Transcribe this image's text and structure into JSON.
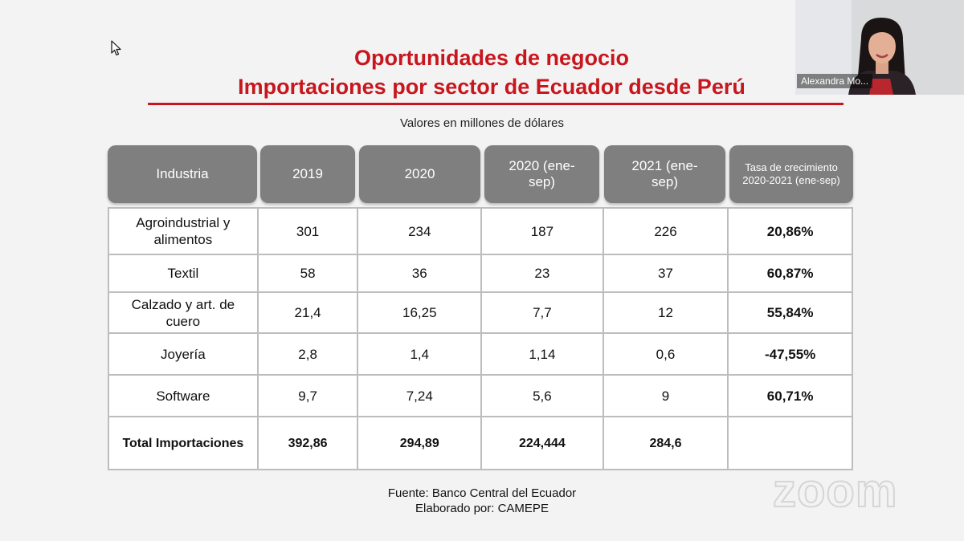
{
  "slide": {
    "title_line1": "Oportunidades de negocio",
    "title_line2": "Importaciones por sector de Ecuador desde Perú",
    "subtitle": "Valores en millones de dólares",
    "accent_color": "#c8161e",
    "header_color": "#7f7f7f"
  },
  "table": {
    "headers": [
      "Industria",
      "2019",
      "2020",
      "2020 (ene-sep)",
      "2021 (ene-sep)",
      "Tasa de crecimiento 2020-2021 (ene-sep)"
    ],
    "rows": [
      [
        "Agroindustrial y alimentos",
        "301",
        "234",
        "187",
        "226",
        "20,86%"
      ],
      [
        "Textil",
        "58",
        "36",
        "23",
        "37",
        "60,87%"
      ],
      [
        "Calzado y art. de cuero",
        "21,4",
        "16,25",
        "7,7",
        "12",
        "55,84%"
      ],
      [
        "Joyería",
        "2,8",
        "1,4",
        "1,14",
        "0,6",
        "-47,55%"
      ],
      [
        "Software",
        "9,7",
        "7,24",
        "5,6",
        "9",
        "60,71%"
      ]
    ],
    "total": [
      "Total Importaciones",
      "392,86",
      "294,89",
      "224,444",
      "284,6",
      ""
    ]
  },
  "footer": {
    "source": "Fuente: Banco Central del Ecuador",
    "author": "Elaborado por: CAMEPE"
  },
  "zoom": {
    "watermark": "zoom",
    "participant_name": "Alexandra Mo..."
  }
}
